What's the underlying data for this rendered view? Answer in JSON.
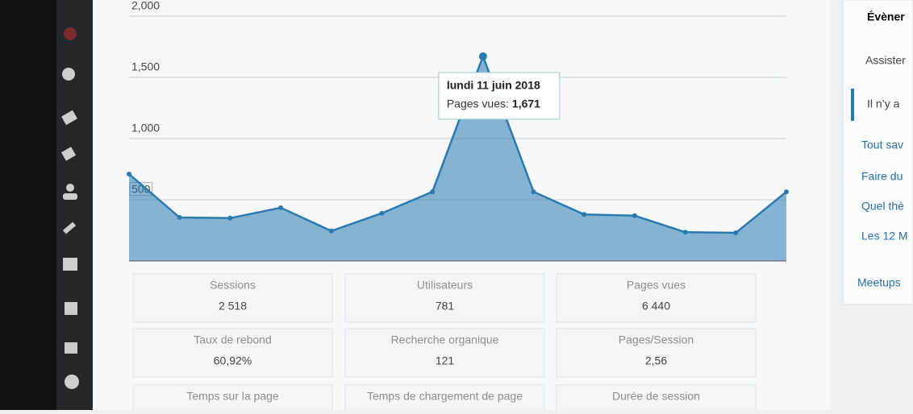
{
  "chart_data": {
    "type": "area",
    "categories": [
      null,
      null,
      null,
      null,
      null,
      null,
      null,
      null,
      null,
      null,
      null,
      null,
      null,
      null
    ],
    "values": [
      710,
      355,
      350,
      435,
      245,
      390,
      565,
      1671,
      565,
      380,
      370,
      235,
      230,
      565
    ],
    "value_labels": [
      null,
      null,
      null,
      null,
      null,
      null,
      null,
      "1,671",
      null,
      null,
      null,
      null,
      null,
      null
    ],
    "color": "#2a7ab0",
    "ylim": [
      0,
      2000
    ],
    "yticks": [
      500,
      {
        "value": 1000,
        "label": "1,000"
      },
      {
        "value": 1500,
        "label": "1,500"
      },
      {
        "value": 2000,
        "label": "2,000"
      }
    ],
    "grid": true,
    "tooltip": {
      "index": 7,
      "title": "lundi 11 juin 2018",
      "label": "Pages vues:"
    }
  },
  "stats": [
    {
      "label": "Sessions",
      "value": "2 518"
    },
    {
      "label": "Utilisateurs",
      "value": "781"
    },
    {
      "label": "Pages vues",
      "value": "6 440"
    },
    {
      "label": "Taux de rebond",
      "value": "60,92%"
    },
    {
      "label": "Recherche organique",
      "value": "121"
    },
    {
      "label": "Pages/Session",
      "value": "2,56"
    },
    {
      "label": "Temps sur la page"
    },
    {
      "label": "Temps de chargement de page"
    },
    {
      "label": "Durée de session"
    }
  ],
  "side_panel": {
    "title": "Évèner",
    "items": [
      "Assister",
      "Il n’y a",
      "Tout sav",
      "Faire du",
      "Quel thè",
      "Les 12 M",
      "Meetups"
    ]
  }
}
